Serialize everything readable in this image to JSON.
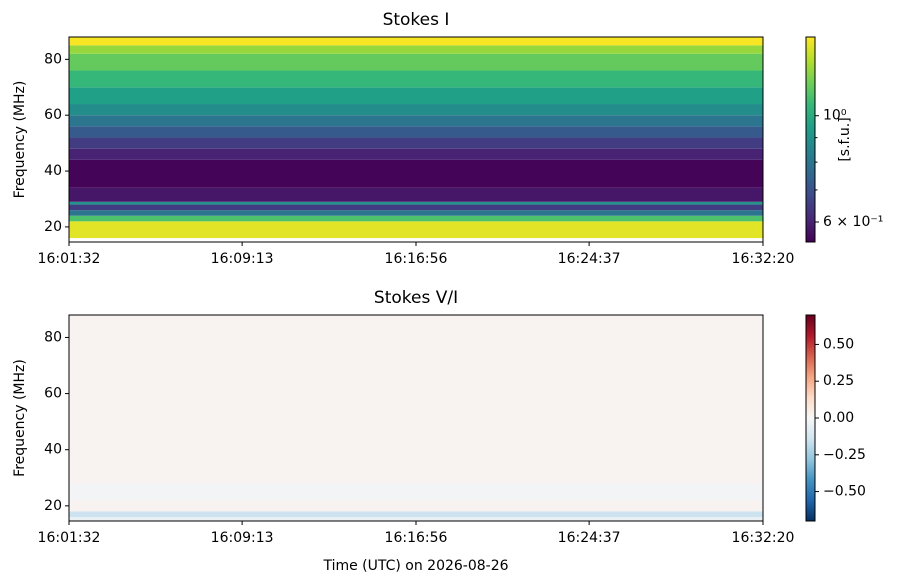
{
  "chart_data": [
    {
      "type": "heatmap",
      "title": "Stokes I",
      "ylabel": "Frequency (MHz)",
      "xlim": [
        57692,
        59540
      ],
      "xticks": [
        {
          "value": 57692,
          "label": "16:01:32"
        },
        {
          "value": 58153,
          "label": "16:09:13"
        },
        {
          "value": 58616,
          "label": "16:16:56"
        },
        {
          "value": 59077,
          "label": "16:24:37"
        },
        {
          "value": 59540,
          "label": "16:32:20"
        }
      ],
      "ylim": [
        14.6,
        88
      ],
      "yticks": [
        20,
        40,
        60,
        80
      ],
      "y_bins": [
        16,
        22,
        24,
        26,
        28,
        29,
        34,
        44,
        48,
        52,
        56,
        60,
        64,
        70,
        76,
        82,
        85,
        88
      ],
      "values": [
        1.4,
        1.1,
        0.8,
        0.65,
        0.9,
        0.58,
        0.55,
        0.6,
        0.65,
        0.72,
        0.8,
        0.88,
        0.95,
        1.05,
        1.15,
        1.25,
        1.45
      ],
      "colormap": "viridis",
      "colormap_colors": [
        "#440154",
        "#482878",
        "#3e4989",
        "#31688e",
        "#26828e",
        "#1f9e89",
        "#35b779",
        "#6ece58",
        "#b5de2b",
        "#fde725"
      ],
      "colorbar_scale": "log",
      "clim": [
        0.545,
        1.46
      ],
      "colorbar_ticks": [
        {
          "value": 1,
          "label": "10⁰"
        },
        {
          "value": 0.6,
          "label": "6 × 10⁻¹"
        }
      ],
      "colorbar_minor_ticks": [
        0.7,
        0.8,
        0.9
      ],
      "colorbar_label": "[s.f.u.]"
    },
    {
      "type": "heatmap",
      "title": "Stokes V/I",
      "ylabel": "Frequency (MHz)",
      "xlabel": "Time (UTC) on 2026-08-26",
      "xlim": [
        57692,
        59540
      ],
      "xticks": [
        {
          "value": 57692,
          "label": "16:01:32"
        },
        {
          "value": 58153,
          "label": "16:09:13"
        },
        {
          "value": 58616,
          "label": "16:16:56"
        },
        {
          "value": 59077,
          "label": "16:24:37"
        },
        {
          "value": 59540,
          "label": "16:32:20"
        }
      ],
      "ylim": [
        14.6,
        88
      ],
      "yticks": [
        20,
        40,
        60,
        80
      ],
      "y_bins": [
        14.6,
        16,
        18,
        22,
        28,
        88
      ],
      "values": [
        -0.05,
        -0.15,
        0.02,
        -0.02,
        0.02
      ],
      "colormap": "RdBu_r",
      "colormap_colors": [
        "#053061",
        "#2166ac",
        "#4393c3",
        "#92c5de",
        "#d1e5f0",
        "#f7f7f7",
        "#fddbc7",
        "#f4a582",
        "#d6604d",
        "#b2182b",
        "#67001f"
      ],
      "colorbar_scale": "linear",
      "clim": [
        -0.7,
        0.7
      ],
      "colorbar_ticks": [
        {
          "value": 0.5,
          "label": "0.50"
        },
        {
          "value": 0.25,
          "label": "0.25"
        },
        {
          "value": 0,
          "label": "0.00"
        },
        {
          "value": -0.25,
          "label": "−0.25"
        },
        {
          "value": -0.5,
          "label": "−0.50"
        }
      ]
    }
  ]
}
